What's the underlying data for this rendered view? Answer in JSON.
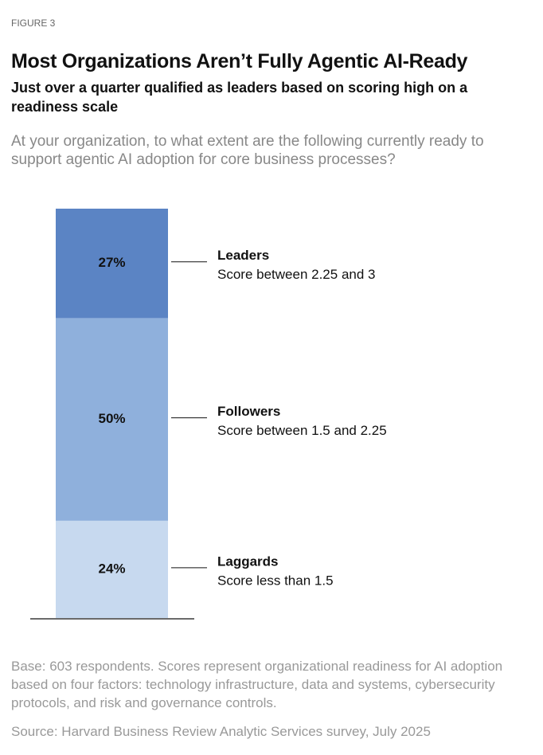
{
  "chart_data": {
    "type": "stacked_bar",
    "figure_label": "FIGURE 3",
    "title": "Most Organizations Aren’t Fully Agentic AI-Ready",
    "subtitle": "Just over a quarter qualified as leaders based on scoring high on a readiness scale",
    "question": "At your organization, to what extent are the following currently ready to support agentic AI adoption for core business processes?",
    "series": [
      {
        "name": "Leaders",
        "description": "Score between 2.25 and 3",
        "color": "#5b84c4",
        "values": [
          27
        ],
        "value_labels": [
          "27%"
        ]
      },
      {
        "name": "Followers",
        "description": "Score between 1.5 and 2.25",
        "color": "#8fb0dc",
        "values": [
          50
        ],
        "value_labels": [
          "50%"
        ]
      },
      {
        "name": "Laggards",
        "description": "Score less than 1.5",
        "color": "#c7d9ef",
        "values": [
          24
        ],
        "value_labels": [
          "24%"
        ]
      }
    ],
    "note": "Base: 603 respondents. Scores represent organizational readiness for AI adoption based on four factors: technology infrastructure, data and systems, cybersecurity protocols, and risk and governance controls.",
    "source": "Source: Harvard Business Review Analytic Services survey, July 2025"
  }
}
